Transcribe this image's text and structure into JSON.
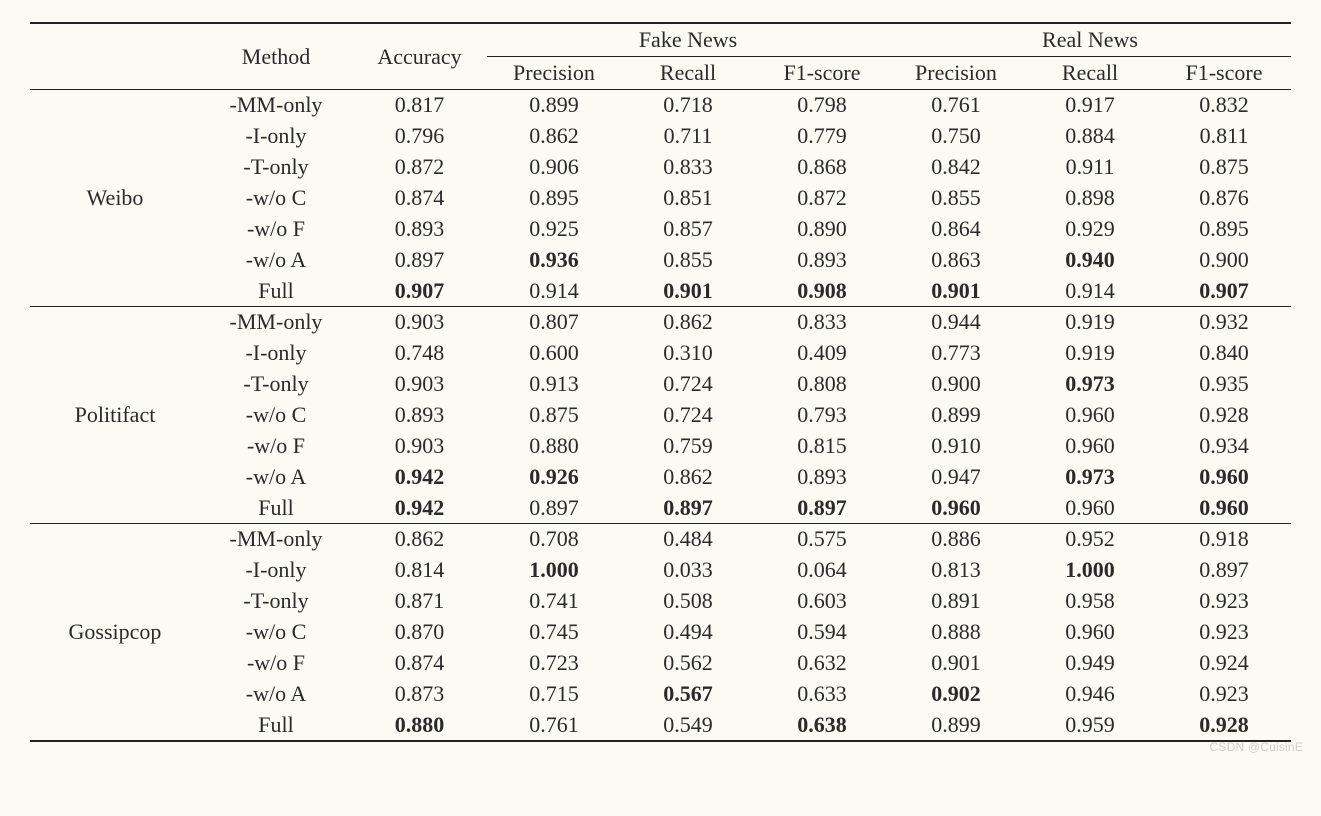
{
  "background_color": "#fbfaf3",
  "text_color": "#2a2a2a",
  "rule_color": "#222222",
  "font_family": "Times New Roman",
  "base_fontsize": 22,
  "watermark": "CSDN @CuisinE",
  "header": {
    "dataset_col_blank": "",
    "method": "Method",
    "accuracy": "Accuracy",
    "fake_news": "Fake News",
    "real_news": "Real News",
    "precision": "Precision",
    "recall": "Recall",
    "f1": "F1-score"
  },
  "columns": [
    "dataset",
    "method",
    "accuracy",
    "fake_precision",
    "fake_recall",
    "fake_f1",
    "real_precision",
    "real_recall",
    "real_f1"
  ],
  "groups": [
    {
      "dataset": "Weibo",
      "rows": [
        {
          "method": "-MM-only",
          "cells": [
            {
              "v": "0.817"
            },
            {
              "v": "0.899"
            },
            {
              "v": "0.718"
            },
            {
              "v": "0.798"
            },
            {
              "v": "0.761"
            },
            {
              "v": "0.917"
            },
            {
              "v": "0.832"
            }
          ]
        },
        {
          "method": "-I-only",
          "cells": [
            {
              "v": "0.796"
            },
            {
              "v": "0.862"
            },
            {
              "v": "0.711"
            },
            {
              "v": "0.779"
            },
            {
              "v": "0.750"
            },
            {
              "v": "0.884"
            },
            {
              "v": "0.811"
            }
          ]
        },
        {
          "method": "-T-only",
          "cells": [
            {
              "v": "0.872"
            },
            {
              "v": "0.906"
            },
            {
              "v": "0.833"
            },
            {
              "v": "0.868"
            },
            {
              "v": "0.842"
            },
            {
              "v": "0.911"
            },
            {
              "v": "0.875"
            }
          ]
        },
        {
          "method": "-w/o C",
          "cells": [
            {
              "v": "0.874"
            },
            {
              "v": "0.895"
            },
            {
              "v": "0.851"
            },
            {
              "v": "0.872"
            },
            {
              "v": "0.855"
            },
            {
              "v": "0.898"
            },
            {
              "v": "0.876"
            }
          ]
        },
        {
          "method": "-w/o F",
          "cells": [
            {
              "v": "0.893"
            },
            {
              "v": "0.925"
            },
            {
              "v": "0.857"
            },
            {
              "v": "0.890"
            },
            {
              "v": "0.864"
            },
            {
              "v": "0.929"
            },
            {
              "v": "0.895"
            }
          ]
        },
        {
          "method": "-w/o A",
          "cells": [
            {
              "v": "0.897"
            },
            {
              "v": "0.936",
              "b": true
            },
            {
              "v": "0.855"
            },
            {
              "v": "0.893"
            },
            {
              "v": "0.863"
            },
            {
              "v": "0.940",
              "b": true
            },
            {
              "v": "0.900"
            }
          ]
        },
        {
          "method": "Full",
          "cells": [
            {
              "v": "0.907",
              "b": true
            },
            {
              "v": "0.914"
            },
            {
              "v": "0.901",
              "b": true
            },
            {
              "v": "0.908",
              "b": true
            },
            {
              "v": "0.901",
              "b": true
            },
            {
              "v": "0.914"
            },
            {
              "v": "0.907",
              "b": true
            }
          ]
        }
      ]
    },
    {
      "dataset": "Politifact",
      "rows": [
        {
          "method": "-MM-only",
          "cells": [
            {
              "v": "0.903"
            },
            {
              "v": "0.807"
            },
            {
              "v": "0.862"
            },
            {
              "v": "0.833"
            },
            {
              "v": "0.944"
            },
            {
              "v": "0.919"
            },
            {
              "v": "0.932"
            }
          ]
        },
        {
          "method": "-I-only",
          "cells": [
            {
              "v": "0.748"
            },
            {
              "v": "0.600"
            },
            {
              "v": "0.310"
            },
            {
              "v": "0.409"
            },
            {
              "v": "0.773"
            },
            {
              "v": "0.919"
            },
            {
              "v": "0.840"
            }
          ]
        },
        {
          "method": "-T-only",
          "cells": [
            {
              "v": "0.903"
            },
            {
              "v": "0.913"
            },
            {
              "v": "0.724"
            },
            {
              "v": "0.808"
            },
            {
              "v": "0.900"
            },
            {
              "v": "0.973",
              "b": true
            },
            {
              "v": "0.935"
            }
          ]
        },
        {
          "method": "-w/o C",
          "cells": [
            {
              "v": "0.893"
            },
            {
              "v": "0.875"
            },
            {
              "v": "0.724"
            },
            {
              "v": "0.793"
            },
            {
              "v": "0.899"
            },
            {
              "v": "0.960"
            },
            {
              "v": "0.928"
            }
          ]
        },
        {
          "method": "-w/o F",
          "cells": [
            {
              "v": "0.903"
            },
            {
              "v": "0.880"
            },
            {
              "v": "0.759"
            },
            {
              "v": "0.815"
            },
            {
              "v": "0.910"
            },
            {
              "v": "0.960"
            },
            {
              "v": "0.934"
            }
          ]
        },
        {
          "method": "-w/o A",
          "cells": [
            {
              "v": "0.942",
              "b": true
            },
            {
              "v": "0.926",
              "b": true
            },
            {
              "v": "0.862"
            },
            {
              "v": "0.893"
            },
            {
              "v": "0.947"
            },
            {
              "v": "0.973",
              "b": true
            },
            {
              "v": "0.960",
              "b": true
            }
          ]
        },
        {
          "method": "Full",
          "cells": [
            {
              "v": "0.942",
              "b": true
            },
            {
              "v": "0.897"
            },
            {
              "v": "0.897",
              "b": true
            },
            {
              "v": "0.897",
              "b": true
            },
            {
              "v": "0.960",
              "b": true
            },
            {
              "v": "0.960"
            },
            {
              "v": "0.960",
              "b": true
            }
          ]
        }
      ]
    },
    {
      "dataset": "Gossipcop",
      "rows": [
        {
          "method": "-MM-only",
          "cells": [
            {
              "v": "0.862"
            },
            {
              "v": "0.708"
            },
            {
              "v": "0.484"
            },
            {
              "v": "0.575"
            },
            {
              "v": "0.886"
            },
            {
              "v": "0.952"
            },
            {
              "v": "0.918"
            }
          ]
        },
        {
          "method": "-I-only",
          "cells": [
            {
              "v": "0.814"
            },
            {
              "v": "1.000",
              "b": true
            },
            {
              "v": "0.033"
            },
            {
              "v": "0.064"
            },
            {
              "v": "0.813"
            },
            {
              "v": "1.000",
              "b": true
            },
            {
              "v": "0.897"
            }
          ]
        },
        {
          "method": "-T-only",
          "cells": [
            {
              "v": "0.871"
            },
            {
              "v": "0.741"
            },
            {
              "v": "0.508"
            },
            {
              "v": "0.603"
            },
            {
              "v": "0.891"
            },
            {
              "v": "0.958"
            },
            {
              "v": "0.923"
            }
          ]
        },
        {
          "method": "-w/o C",
          "cells": [
            {
              "v": "0.870"
            },
            {
              "v": "0.745"
            },
            {
              "v": "0.494"
            },
            {
              "v": "0.594"
            },
            {
              "v": "0.888"
            },
            {
              "v": "0.960"
            },
            {
              "v": "0.923"
            }
          ]
        },
        {
          "method": "-w/o F",
          "cells": [
            {
              "v": "0.874"
            },
            {
              "v": "0.723"
            },
            {
              "v": "0.562"
            },
            {
              "v": "0.632"
            },
            {
              "v": "0.901"
            },
            {
              "v": "0.949"
            },
            {
              "v": "0.924"
            }
          ]
        },
        {
          "method": "-w/o A",
          "cells": [
            {
              "v": "0.873"
            },
            {
              "v": "0.715"
            },
            {
              "v": "0.567",
              "b": true
            },
            {
              "v": "0.633"
            },
            {
              "v": "0.902",
              "b": true
            },
            {
              "v": "0.946"
            },
            {
              "v": "0.923"
            }
          ]
        },
        {
          "method": "Full",
          "cells": [
            {
              "v": "0.880",
              "b": true
            },
            {
              "v": "0.761"
            },
            {
              "v": "0.549"
            },
            {
              "v": "0.638",
              "b": true
            },
            {
              "v": "0.899"
            },
            {
              "v": "0.959"
            },
            {
              "v": "0.928",
              "b": true
            }
          ]
        }
      ]
    }
  ]
}
